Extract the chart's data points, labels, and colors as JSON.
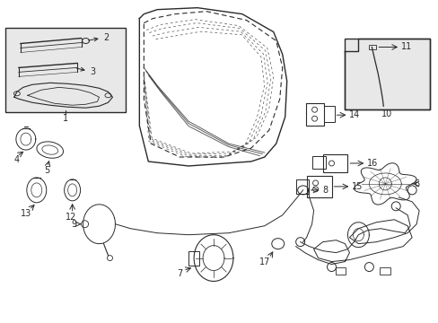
{
  "bg_color": "#ffffff",
  "fig_width": 4.89,
  "fig_height": 3.6,
  "dpi": 100,
  "gray": "#2a2a2a",
  "light_gray": "#888888",
  "box_fill": "#e8e8e8",
  "font_size": 7.0
}
